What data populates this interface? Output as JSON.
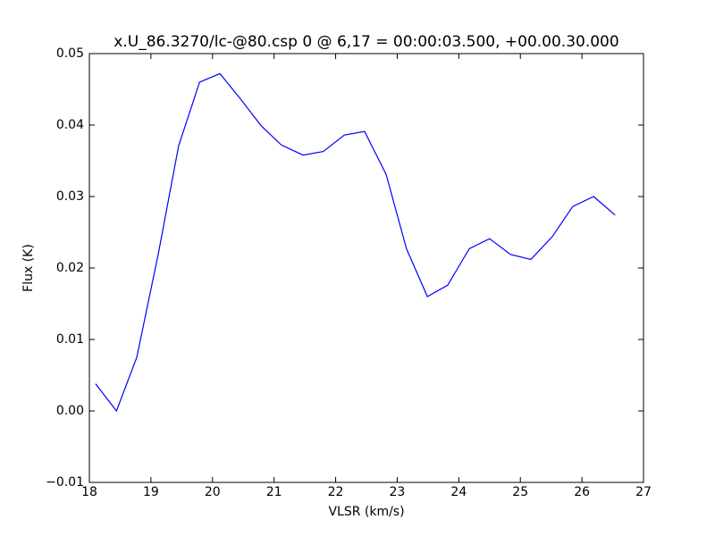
{
  "chart_data": {
    "type": "line",
    "title": "x.U_86.3270/lc-@80.csp 0 @ 6,17 = 00:00:03.500, +00.00.30.000",
    "x_label": "VLSR (km/s)",
    "y_label": "Flux (K)",
    "x": [
      18.1,
      18.44,
      18.77,
      19.12,
      19.45,
      19.79,
      20.12,
      20.45,
      20.79,
      21.12,
      21.47,
      21.8,
      22.14,
      22.47,
      22.82,
      23.15,
      23.49,
      23.82,
      24.17,
      24.5,
      24.84,
      25.17,
      25.52,
      25.85,
      26.19,
      26.54
    ],
    "series": [
      {
        "color": "#0000ff",
        "values": [
          0.0038,
          0.0,
          0.0075,
          0.022,
          0.0371,
          0.046,
          0.0472,
          0.0437,
          0.0399,
          0.0372,
          0.0358,
          0.0363,
          0.0386,
          0.0391,
          0.0331,
          0.0227,
          0.016,
          0.0176,
          0.0227,
          0.0241,
          0.0219,
          0.0212,
          0.0244,
          0.0286,
          0.03,
          0.0274
        ]
      }
    ],
    "xlim": [
      18,
      27
    ],
    "ylim": [
      -0.01,
      0.05
    ],
    "xticks": [
      18,
      19,
      20,
      21,
      22,
      23,
      24,
      25,
      26,
      27
    ],
    "yticks": [
      {
        "value": -0.01,
        "label": "−0.01"
      },
      {
        "value": 0,
        "label": "0.00"
      },
      0.01,
      0.02,
      0.03,
      0.04,
      0.05
    ],
    "grid": false
  }
}
